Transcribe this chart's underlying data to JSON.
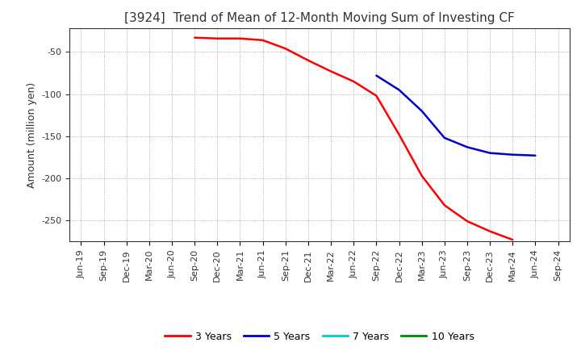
{
  "title": "[3924]  Trend of Mean of 12-Month Moving Sum of Investing CF",
  "ylabel": "Amount (million yen)",
  "ylim": [
    -275,
    -22
  ],
  "yticks": [
    -250,
    -200,
    -150,
    -100,
    -50
  ],
  "x_labels": [
    "Jun-19",
    "Sep-19",
    "Dec-19",
    "Mar-20",
    "Jun-20",
    "Sep-20",
    "Dec-20",
    "Mar-21",
    "Jun-21",
    "Sep-21",
    "Dec-21",
    "Mar-22",
    "Jun-22",
    "Sep-22",
    "Dec-22",
    "Mar-23",
    "Jun-23",
    "Sep-23",
    "Dec-23",
    "Mar-24",
    "Jun-24",
    "Sep-24"
  ],
  "series_3y": {
    "label": "3 Years",
    "color": "#FF0000",
    "x": [
      "Sep-20",
      "Dec-20",
      "Mar-21",
      "Jun-21",
      "Sep-21",
      "Dec-21",
      "Mar-22",
      "Jun-22",
      "Sep-22",
      "Dec-22",
      "Mar-23",
      "Jun-23",
      "Sep-23",
      "Dec-23",
      "Mar-24"
    ],
    "y": [
      -33,
      -34,
      -34,
      -36,
      -46,
      -60,
      -73,
      -85,
      -102,
      -148,
      -197,
      -232,
      -251,
      -263,
      -273
    ]
  },
  "series_5y": {
    "label": "5 Years",
    "color": "#0000CC",
    "x": [
      "Sep-22",
      "Dec-22",
      "Mar-23",
      "Jun-23",
      "Sep-23",
      "Dec-23",
      "Mar-24",
      "Jun-24"
    ],
    "y": [
      -78,
      -95,
      -120,
      -152,
      -163,
      -170,
      -172,
      -173
    ]
  },
  "series_7y": {
    "label": "7 Years",
    "color": "#00CCCC",
    "x": [],
    "y": []
  },
  "series_10y": {
    "label": "10 Years",
    "color": "#008800",
    "x": [],
    "y": []
  },
  "background_color": "#FFFFFF",
  "grid_color": "#999999",
  "title_fontsize": 11,
  "label_fontsize": 9,
  "tick_fontsize": 8,
  "legend_fontsize": 9
}
